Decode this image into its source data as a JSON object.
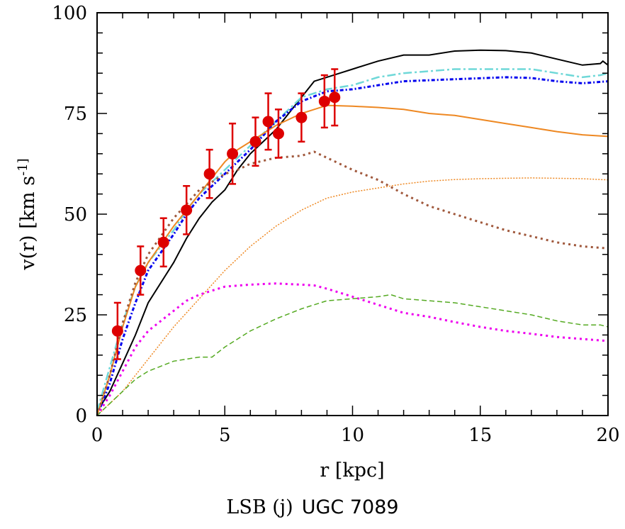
{
  "chart_data": {
    "type": "line",
    "title": "",
    "xlabel": "r [kpc]",
    "ylabel": "v(r) [km s^-1]",
    "caption": {
      "prefix": "LSB (j)",
      "name": "UGC 7089"
    },
    "xlim": [
      0,
      20
    ],
    "ylim": [
      0,
      100
    ],
    "xticks": [
      0,
      5,
      10,
      15,
      20
    ],
    "yticks": [
      0,
      25,
      50,
      75,
      100
    ],
    "x_minor_step": 1,
    "y_minor_step": 5,
    "grid": false,
    "observed": {
      "color": "#dd0000",
      "points": [
        {
          "r": 0.8,
          "v": 21,
          "err": 7
        },
        {
          "r": 1.7,
          "v": 36,
          "err": 6
        },
        {
          "r": 2.6,
          "v": 43,
          "err": 6
        },
        {
          "r": 3.5,
          "v": 51,
          "err": 6
        },
        {
          "r": 4.4,
          "v": 60,
          "err": 6
        },
        {
          "r": 5.3,
          "v": 65,
          "err": 7.5
        },
        {
          "r": 6.2,
          "v": 68,
          "err": 6
        },
        {
          "r": 6.7,
          "v": 73,
          "err": 7
        },
        {
          "r": 7.1,
          "v": 70,
          "err": 6
        },
        {
          "r": 8.0,
          "v": 74,
          "err": 6
        },
        {
          "r": 8.9,
          "v": 78,
          "err": 6.5
        },
        {
          "r": 9.3,
          "v": 79,
          "err": 7
        }
      ]
    },
    "series": [
      {
        "color": "#000000",
        "style": "solid",
        "x": [
          0,
          0.5,
          1,
          1.5,
          2,
          3,
          3.5,
          4,
          4.5,
          5,
          5.5,
          6,
          7,
          7.5,
          8,
          8.5,
          9,
          9.5,
          10,
          10.5,
          11,
          12,
          13,
          14,
          15,
          16,
          17,
          18,
          19,
          19.7,
          19.8,
          20
        ],
        "y": [
          1,
          6,
          13,
          20,
          28,
          38,
          44,
          49,
          53,
          56,
          61,
          65,
          71,
          75,
          79,
          83,
          84,
          85,
          86,
          87,
          88,
          89.5,
          89.5,
          90.5,
          90.7,
          90.6,
          90,
          88.5,
          87,
          87.4,
          88,
          87
        ]
      },
      {
        "color": "#6fd8d8",
        "style": "dashdot",
        "x": [
          0,
          0.5,
          1,
          1.5,
          2,
          3,
          3.5,
          4,
          5,
          6,
          7,
          8,
          9,
          10,
          11,
          12,
          13,
          14,
          15,
          16,
          17,
          18,
          19,
          19.7,
          20
        ],
        "y": [
          1,
          12,
          23,
          32,
          38,
          46,
          51,
          55,
          61,
          67,
          73,
          79,
          81,
          82,
          84,
          85,
          85.5,
          86,
          86,
          86,
          86,
          85,
          84,
          84.5,
          85
        ]
      },
      {
        "color": "#0000ee",
        "style": "dashdotdot",
        "x": [
          0,
          0.5,
          1,
          1.5,
          2,
          3,
          3.5,
          4,
          5,
          6,
          7,
          8,
          9,
          10,
          11,
          12,
          14,
          16,
          17,
          18,
          19,
          20
        ],
        "y": [
          0,
          8,
          19,
          28,
          36,
          45,
          50,
          54,
          60,
          66,
          73,
          78,
          80.5,
          81,
          82,
          83,
          83.5,
          84,
          83.8,
          83,
          82.5,
          83
        ]
      },
      {
        "color": "#ee8822",
        "style": "solid",
        "x": [
          0,
          0.5,
          1,
          1.5,
          2,
          3,
          4,
          4.5,
          5,
          5.5,
          6,
          7,
          8,
          9,
          10,
          11,
          12,
          13,
          14,
          15,
          16,
          17,
          18,
          19,
          20
        ],
        "y": [
          0,
          10,
          22,
          32,
          38,
          47,
          55,
          59,
          63,
          66,
          68,
          72,
          75,
          77,
          76.8,
          76.5,
          76,
          75,
          74.5,
          73.5,
          72.5,
          71.5,
          70.5,
          69.7,
          69.3
        ]
      },
      {
        "color": "#a0583c",
        "style": "dotted-coarse",
        "x": [
          0,
          0.5,
          1,
          1.5,
          2,
          3,
          4,
          5,
          5.5,
          6,
          7,
          8,
          8.5,
          9,
          10,
          11,
          12,
          13,
          14,
          15,
          16,
          17,
          18,
          19,
          20
        ],
        "y": [
          0,
          10,
          23,
          33,
          40,
          49,
          56,
          60,
          61,
          62.5,
          64,
          64.5,
          65.5,
          64,
          61,
          58.5,
          55,
          52,
          50,
          48,
          46,
          44.5,
          43,
          42,
          41.5
        ]
      },
      {
        "color": "#ee8822",
        "style": "dotted-fine",
        "x": [
          0,
          1,
          2,
          3,
          4,
          5,
          6,
          7,
          8,
          9,
          10,
          11,
          12,
          13,
          14,
          15,
          16,
          17,
          18,
          19,
          20
        ],
        "y": [
          0,
          6,
          14,
          22,
          29,
          36,
          42,
          47,
          51,
          54,
          55.5,
          56.5,
          57.5,
          58.2,
          58.6,
          58.8,
          58.9,
          59,
          58.9,
          58.8,
          58.5
        ]
      },
      {
        "color": "#ee00ee",
        "style": "dotted-coarse",
        "x": [
          0,
          0.5,
          1,
          1.5,
          2,
          3,
          3.5,
          4,
          5,
          6,
          7,
          8,
          8.5,
          9,
          10,
          11,
          12,
          13,
          14,
          15,
          16,
          17,
          18,
          19,
          20
        ],
        "y": [
          0,
          5,
          11,
          17,
          21,
          26,
          28.5,
          30,
          32,
          32.5,
          32.8,
          32.5,
          32.3,
          31.5,
          29.5,
          27.5,
          25.5,
          24.5,
          23.2,
          22,
          21,
          20.3,
          19.5,
          19,
          18.5
        ]
      },
      {
        "color": "#55aa22",
        "style": "dashed",
        "x": [
          0,
          1,
          1.5,
          2,
          3,
          4,
          4.5,
          5,
          6,
          7,
          8,
          9,
          10,
          11,
          11.5,
          12,
          13,
          14,
          15,
          16,
          17,
          18,
          19,
          19.7,
          20
        ],
        "y": [
          0,
          6,
          9,
          11,
          13.5,
          14.5,
          14.5,
          17,
          21,
          24,
          26.5,
          28.5,
          29,
          29.5,
          30,
          29,
          28.5,
          28,
          27,
          26,
          25,
          23.5,
          22.5,
          22.5,
          22
        ]
      }
    ]
  }
}
